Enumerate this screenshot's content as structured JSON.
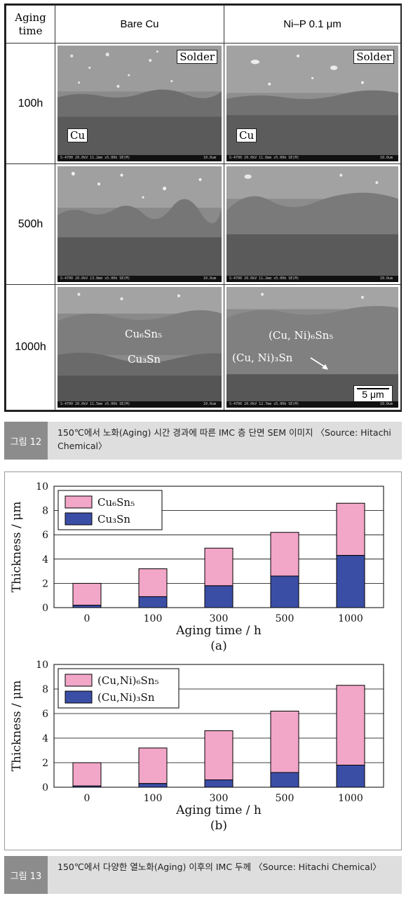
{
  "figure12": {
    "header": {
      "aging_time": "Aging\ntime",
      "col1": "Bare Cu",
      "col2": "Ni–P 0.1 μm"
    },
    "rows": [
      {
        "label": "100h"
      },
      {
        "label": "500h"
      },
      {
        "label": "1000h"
      }
    ],
    "tags": {
      "solder": "Solder",
      "cu": "Cu"
    },
    "phases": {
      "bare_upper": "Cu₆Sn₅",
      "bare_lower": "Cu₃Sn",
      "nip_upper": "(Cu, Ni)₆Sn₅",
      "nip_lower": "(Cu, Ni)₃Sn"
    },
    "scalebar": "5 μm",
    "micron_strip": [
      "S-4700 20.0kV 11.2mm x5.00k SE(M)",
      "S-4700 20.0kV 11.6mm x5.00k SE(M)",
      "S-4700 20.0kV 13.8mm x5.00k SE(M)",
      "S-4700 20.0kV 11.2mm x5.00k SE(M)",
      "S-4700 20.0kV 11.5mm x5.00k SE(M)",
      "S-4700 20.0kV 12.7mm x5.00k SE(M)"
    ],
    "micron_scale": "10.0um",
    "caption_tag": "그림 12",
    "caption": "150℃에서 노화(Aging) 시간 경과에 따른 IMC 층 단면 SEM 이미지 〈Source: Hitachi Chemical〉"
  },
  "figure13": {
    "caption_tag": "그림 13",
    "caption": "150℃에서 다양한 열노화(Aging) 이후의 IMC 두께 〈Source: Hitachi Chemical〉"
  },
  "colors": {
    "upper_layer": "#f2a6c8",
    "lower_layer": "#3b4ea6",
    "gridline": "#000000"
  },
  "chart_data": [
    {
      "type": "bar",
      "stacked": true,
      "panel_label": "(a)",
      "categories": [
        "0",
        "100",
        "300",
        "500",
        "1000"
      ],
      "series": [
        {
          "name": "Cu₃Sn",
          "values": [
            0.2,
            0.9,
            1.8,
            2.6,
            4.3
          ]
        },
        {
          "name": "Cu₆Sn₅",
          "values": [
            1.8,
            2.3,
            3.1,
            3.6,
            4.3
          ]
        }
      ],
      "legend_order": [
        "Cu₆Sn₅",
        "Cu₃Sn"
      ],
      "xlabel": "Aging time / h",
      "ylabel": "Thickness / μm",
      "ylim": [
        0,
        10
      ],
      "yticks": [
        "0",
        "2",
        "4",
        "6",
        "8",
        "10"
      ],
      "grid": "horizontal",
      "legend_position": "top-left"
    },
    {
      "type": "bar",
      "stacked": true,
      "panel_label": "(b)",
      "categories": [
        "0",
        "100",
        "300",
        "500",
        "1000"
      ],
      "series": [
        {
          "name": "(Cu,Ni)₃Sn",
          "values": [
            0.1,
            0.3,
            0.6,
            1.2,
            1.8
          ]
        },
        {
          "name": "(Cu,Ni)₆Sn₅",
          "values": [
            1.9,
            2.9,
            4.0,
            5.0,
            6.5
          ]
        }
      ],
      "legend_order": [
        "(Cu,Ni)₆Sn₅",
        "(Cu,Ni)₃Sn"
      ],
      "xlabel": "Aging time / h",
      "ylabel": "Thickness / μm",
      "ylim": [
        0,
        10
      ],
      "yticks": [
        "0",
        "2",
        "4",
        "6",
        "8",
        "10"
      ],
      "grid": "horizontal",
      "legend_position": "top-left"
    }
  ]
}
